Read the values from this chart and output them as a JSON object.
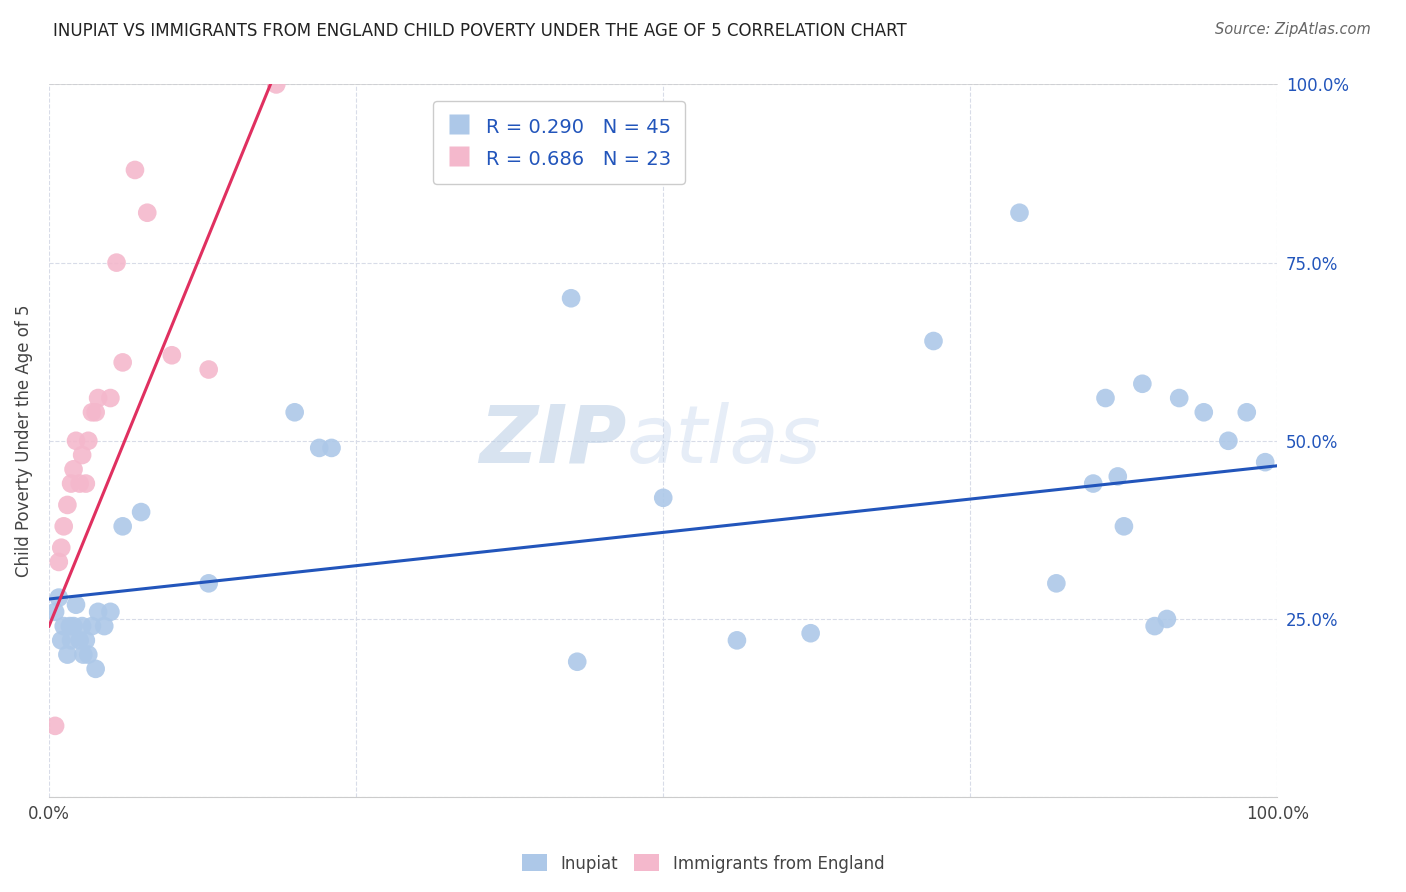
{
  "title": "INUPIAT VS IMMIGRANTS FROM ENGLAND CHILD POVERTY UNDER THE AGE OF 5 CORRELATION CHART",
  "source": "Source: ZipAtlas.com",
  "ylabel": "Child Poverty Under the Age of 5",
  "watermark_zip": "ZIP",
  "watermark_atlas": "atlas",
  "xlim": [
    0,
    1
  ],
  "ylim": [
    0,
    1
  ],
  "legend_labels": [
    "Inupiat",
    "Immigrants from England"
  ],
  "blue_R": "0.290",
  "blue_N": "45",
  "pink_R": "0.686",
  "pink_N": "23",
  "blue_color": "#adc8e8",
  "pink_color": "#f4b8cc",
  "blue_line_color": "#2255bb",
  "pink_line_color": "#e03060",
  "title_color": "#222222",
  "source_color": "#666666",
  "legend_text_color": "#2255bb",
  "grid_color": "#d8dce8",
  "right_tick_color": "#2255bb",
  "blue_scatter_x": [
    0.005,
    0.008,
    0.01,
    0.012,
    0.015,
    0.017,
    0.018,
    0.02,
    0.022,
    0.025,
    0.027,
    0.028,
    0.03,
    0.032,
    0.035,
    0.038,
    0.04,
    0.045,
    0.05,
    0.06,
    0.075,
    0.13,
    0.2,
    0.22,
    0.23,
    0.425,
    0.43,
    0.5,
    0.56,
    0.62,
    0.72,
    0.79,
    0.82,
    0.85,
    0.86,
    0.87,
    0.875,
    0.89,
    0.9,
    0.91,
    0.92,
    0.94,
    0.96,
    0.975,
    0.99
  ],
  "blue_scatter_y": [
    0.26,
    0.28,
    0.22,
    0.24,
    0.2,
    0.24,
    0.22,
    0.24,
    0.27,
    0.22,
    0.24,
    0.2,
    0.22,
    0.2,
    0.24,
    0.18,
    0.26,
    0.24,
    0.26,
    0.38,
    0.4,
    0.3,
    0.54,
    0.49,
    0.49,
    0.7,
    0.19,
    0.42,
    0.22,
    0.23,
    0.64,
    0.82,
    0.3,
    0.44,
    0.56,
    0.45,
    0.38,
    0.58,
    0.24,
    0.25,
    0.56,
    0.54,
    0.5,
    0.54,
    0.47
  ],
  "pink_scatter_x": [
    0.005,
    0.008,
    0.01,
    0.012,
    0.015,
    0.018,
    0.02,
    0.022,
    0.025,
    0.027,
    0.03,
    0.032,
    0.035,
    0.038,
    0.04,
    0.05,
    0.055,
    0.06,
    0.07,
    0.08,
    0.1,
    0.13,
    0.185
  ],
  "pink_scatter_y": [
    0.1,
    0.33,
    0.35,
    0.38,
    0.41,
    0.44,
    0.46,
    0.5,
    0.44,
    0.48,
    0.44,
    0.5,
    0.54,
    0.54,
    0.56,
    0.56,
    0.75,
    0.61,
    0.88,
    0.82,
    0.62,
    0.6,
    1.0
  ],
  "blue_line_x": [
    0.0,
    1.0
  ],
  "blue_line_y": [
    0.278,
    0.465
  ],
  "pink_line_x": [
    0.0,
    0.185
  ],
  "pink_line_y": [
    0.24,
    1.02
  ]
}
